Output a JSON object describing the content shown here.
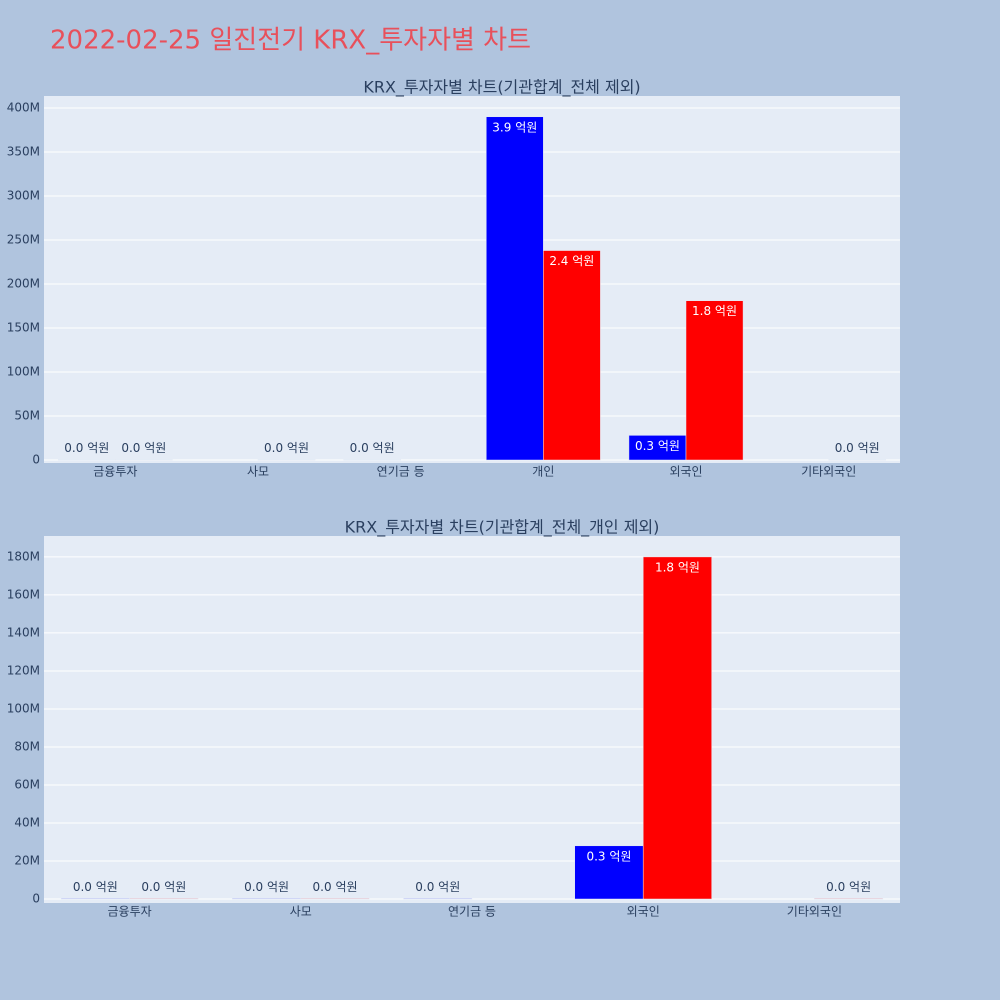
{
  "title": "2022-02-25 일진전기 KRX_투자자별 차트",
  "chart_data": [
    {
      "type": "bar",
      "title": "KRX_투자자별 차트(기관합계_전체 제외)",
      "categories": [
        "금융투자",
        "사모",
        "연기금 등",
        "개인",
        "외국인",
        "기타외국인"
      ],
      "series": [
        {
          "color": "#0000ff",
          "values": [
            0.5,
            null,
            0.5,
            390,
            28,
            null
          ],
          "value_labels": [
            "0.0 억원",
            null,
            "0.0 억원",
            "3.9 억원",
            "0.3 억원",
            null
          ]
        },
        {
          "color": "#ff0000",
          "values": [
            0.5,
            0.5,
            null,
            238,
            181,
            0.5
          ],
          "value_labels": [
            "0.0 억원",
            "0.0 억원",
            null,
            "2.4 억원",
            "1.8 억원",
            "0.0 억원"
          ]
        }
      ],
      "ylim": [
        -3.4,
        413.6
      ],
      "yticks": [
        0,
        {
          "value": 50,
          "label": "50M"
        },
        {
          "value": 100,
          "label": "100M"
        },
        {
          "value": 150,
          "label": "150M"
        },
        {
          "value": 200,
          "label": "200M"
        },
        {
          "value": 250,
          "label": "250M"
        },
        {
          "value": 300,
          "label": "300M"
        },
        {
          "value": 350,
          "label": "350M"
        },
        {
          "value": 400,
          "label": "400M"
        }
      ],
      "grid": true
    },
    {
      "type": "bar",
      "title": "KRX_투자자별 차트(기관합계_전체_개인 제외)",
      "categories": [
        "금융투자",
        "사모",
        "연기금 등",
        "외국인",
        "기타외국인"
      ],
      "series": [
        {
          "color": "#0000ff",
          "values": [
            0.3,
            0.3,
            0.3,
            28,
            null
          ],
          "value_labels": [
            "0.0 억원",
            "0.0 억원",
            "0.0 억원",
            "0.3 억원",
            null
          ]
        },
        {
          "color": "#ff0000",
          "values": [
            0.3,
            0.3,
            null,
            180,
            0.3
          ],
          "value_labels": [
            "0.0 억원",
            "0.0 억원",
            null,
            "1.8 억원",
            "0.0 억원"
          ]
        }
      ],
      "ylim": [
        -2.1,
        191
      ],
      "yticks": [
        0,
        {
          "value": 20,
          "label": "20M"
        },
        {
          "value": 40,
          "label": "40M"
        },
        {
          "value": 60,
          "label": "60M"
        },
        {
          "value": 80,
          "label": "80M"
        },
        {
          "value": 100,
          "label": "100M"
        },
        {
          "value": 120,
          "label": "120M"
        },
        {
          "value": 140,
          "label": "140M"
        },
        {
          "value": 160,
          "label": "160M"
        },
        {
          "value": 180,
          "label": "180M"
        }
      ],
      "grid": true
    }
  ]
}
